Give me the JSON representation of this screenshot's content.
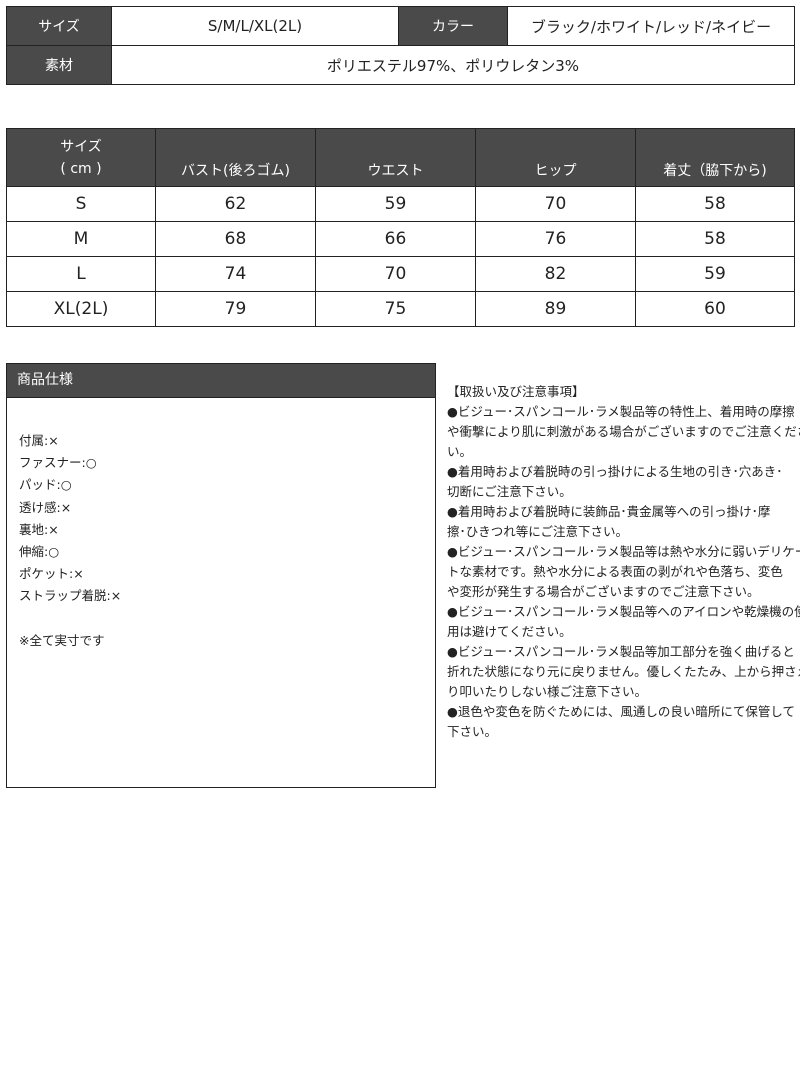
{
  "info": {
    "size_label": "サイズ",
    "size_value": "S/M/L/XL(2L)",
    "color_label": "カラー",
    "color_value": "ブラック/ホワイト/レッド/ネイビー",
    "material_label": "素材",
    "material_value": "ポリエステル97%、ポリウレタン3%"
  },
  "size_table": {
    "header_size": "サイズ",
    "header_unit": "( cm )",
    "columns": [
      "バスト(後ろゴム)",
      "ウエスト",
      "ヒップ",
      "着丈（脇下から)"
    ],
    "rows": [
      [
        "S",
        "62",
        "59",
        "70",
        "58"
      ],
      [
        "M",
        "68",
        "66",
        "76",
        "58"
      ],
      [
        "L",
        "74",
        "70",
        "82",
        "59"
      ],
      [
        "XL(2L)",
        "79",
        "75",
        "89",
        "60"
      ]
    ]
  },
  "spec": {
    "title": "商品仕様",
    "items": [
      "付属:×",
      "ファスナー:○",
      "パッド:○",
      "透け感:×",
      "裏地:×",
      "伸縮:○",
      "ポケット:×",
      "ストラップ着脱:×",
      "",
      "※全て実寸です"
    ]
  },
  "notes": {
    "lines": [
      "【取扱い及び注意事項】",
      "●ビジュー･スパンコール･ラメ製品等の特性上、着用時の摩擦",
      "や衝撃により肌に刺激がある場合がございますのでご注意くださ",
      "い。",
      "●着用時および着脱時の引っ掛けによる生地の引き･穴あき･",
      "切断にご注意下さい。",
      "●着用時および着脱時に装飾品･貴金属等への引っ掛け･摩",
      "擦･ひきつれ等にご注意下さい。",
      "●ビジュー･スパンコール･ラメ製品等は熱や水分に弱いデリケー",
      "トな素材です。熱や水分による表面の剥がれや色落ち、変色",
      "や変形が発生する場合がございますのでご注意下さい。",
      "●ビジュー･スパンコール･ラメ製品等へのアイロンや乾燥機の使",
      "用は避けてください。",
      "●ビジュー･スパンコール･ラメ製品等加工部分を強く曲げると",
      "折れた状態になり元に戻りません。優しくたたみ、上から押さえた",
      "り叩いたりしない様ご注意下さい。",
      "●退色や変色を防ぐためには、風通しの良い暗所にて保管して",
      "下さい。"
    ]
  }
}
